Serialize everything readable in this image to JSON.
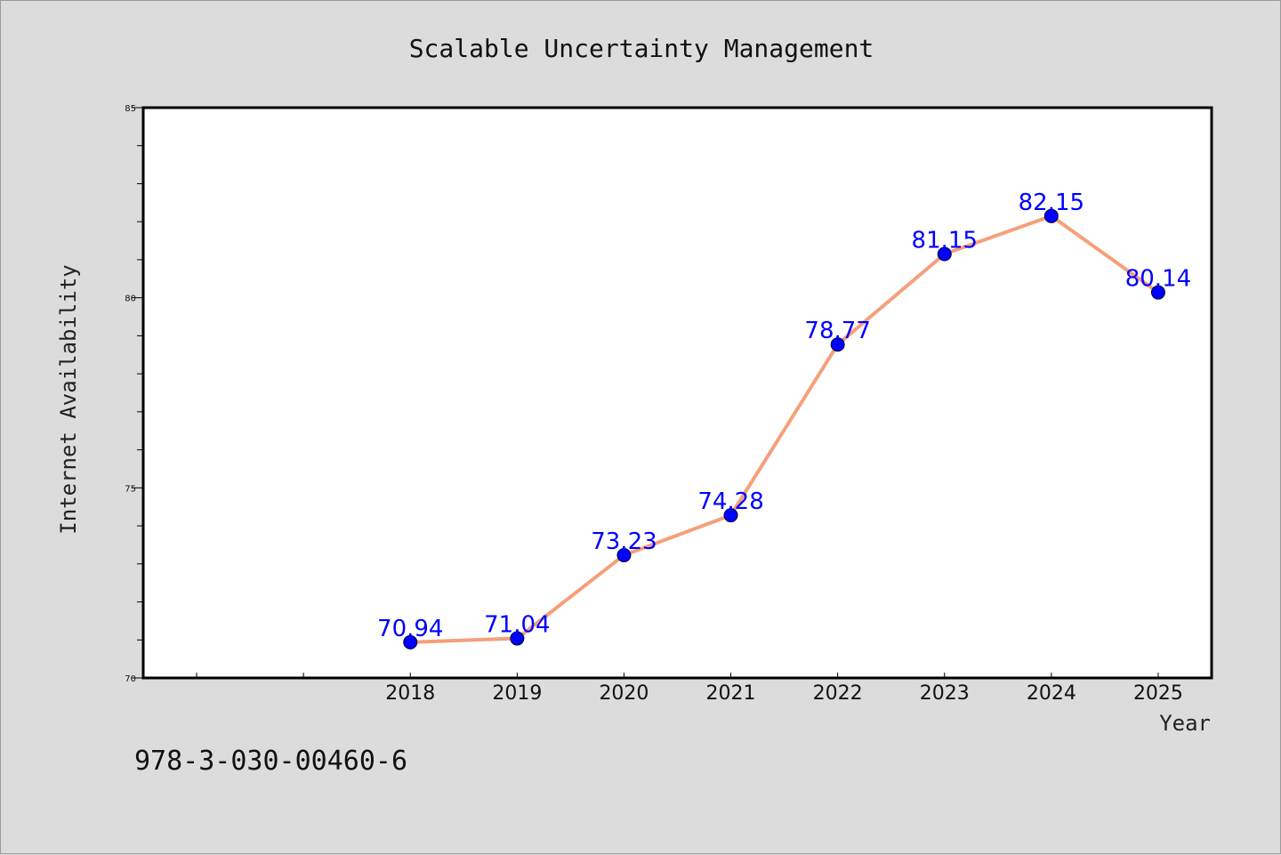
{
  "chart_data": {
    "type": "line",
    "title": "Scalable Uncertainty Management",
    "xlabel": "Year",
    "ylabel": "Internet Availability",
    "categories": [
      "2018",
      "2019",
      "2020",
      "2021",
      "2022",
      "2023",
      "2024",
      "2025"
    ],
    "x": [
      2018,
      2019,
      2020,
      2021,
      2022,
      2023,
      2024,
      2025
    ],
    "series": [
      {
        "values": [
          70.94,
          71.04,
          73.23,
          74.28,
          78.77,
          81.15,
          82.15,
          80.14
        ],
        "labels": [
          "70.94",
          "71.04",
          "73.23",
          "74.28",
          "78.77",
          "81.15",
          "82.15",
          "80.14"
        ],
        "line_color": "#f5a07a",
        "marker_color": "#0000ff"
      }
    ],
    "xlim": [
      2015.5,
      2025.5
    ],
    "ylim": [
      70,
      85
    ],
    "yticks": [
      70,
      75,
      80,
      85
    ],
    "ytick_labels": [
      "70",
      "75",
      "80",
      "85"
    ],
    "grid": false,
    "legend": "none"
  },
  "footer": {
    "text": "978-3-030-00460-6"
  },
  "colors": {
    "background": "#dcdcdc",
    "plot_area": "#ffffff",
    "data_label": "#0000ff"
  }
}
